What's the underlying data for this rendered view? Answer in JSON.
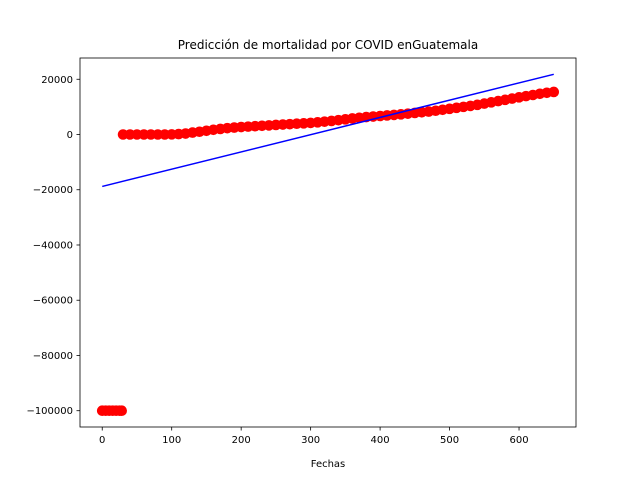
{
  "chart_data": {
    "type": "scatter",
    "title": "Predicción de mortalidad por COVID enGuatemala",
    "xlabel": "Fechas",
    "ylabel": "",
    "xlim": [
      -32,
      682
    ],
    "ylim": [
      -105900,
      27700
    ],
    "xticks": [
      0,
      100,
      200,
      300,
      400,
      500,
      600
    ],
    "yticks": [
      -100000,
      -80000,
      -60000,
      -40000,
      -20000,
      0,
      20000
    ],
    "xtick_labels": [
      "0",
      "100",
      "200",
      "300",
      "400",
      "500",
      "600"
    ],
    "ytick_labels": [
      "−100000",
      "−80000",
      "−60000",
      "−40000",
      "−20000",
      "0",
      "20000"
    ],
    "grid": false,
    "series": [
      {
        "kind": "scatter",
        "color": "#ff0000",
        "points": [
          [
            0,
            -100000
          ],
          [
            5,
            -100000
          ],
          [
            10,
            -100000
          ],
          [
            15,
            -100000
          ],
          [
            20,
            -100000
          ],
          [
            25,
            -100000
          ],
          [
            28,
            -100000
          ],
          [
            30,
            0
          ],
          [
            40,
            0
          ],
          [
            50,
            0
          ],
          [
            60,
            0
          ],
          [
            70,
            0
          ],
          [
            80,
            0
          ],
          [
            90,
            0
          ],
          [
            100,
            50
          ],
          [
            110,
            150
          ],
          [
            120,
            350
          ],
          [
            130,
            700
          ],
          [
            140,
            1000
          ],
          [
            150,
            1350
          ],
          [
            160,
            1700
          ],
          [
            170,
            2000
          ],
          [
            180,
            2300
          ],
          [
            190,
            2500
          ],
          [
            200,
            2700
          ],
          [
            210,
            2850
          ],
          [
            220,
            3000
          ],
          [
            230,
            3150
          ],
          [
            240,
            3300
          ],
          [
            250,
            3450
          ],
          [
            260,
            3600
          ],
          [
            270,
            3750
          ],
          [
            280,
            3900
          ],
          [
            290,
            4050
          ],
          [
            300,
            4200
          ],
          [
            310,
            4400
          ],
          [
            320,
            4650
          ],
          [
            330,
            4900
          ],
          [
            340,
            5200
          ],
          [
            350,
            5500
          ],
          [
            360,
            5800
          ],
          [
            370,
            6050
          ],
          [
            380,
            6300
          ],
          [
            390,
            6500
          ],
          [
            400,
            6700
          ],
          [
            410,
            6900
          ],
          [
            420,
            7100
          ],
          [
            430,
            7300
          ],
          [
            440,
            7550
          ],
          [
            450,
            7800
          ],
          [
            460,
            8050
          ],
          [
            470,
            8300
          ],
          [
            480,
            8600
          ],
          [
            490,
            8950
          ],
          [
            500,
            9300
          ],
          [
            510,
            9650
          ],
          [
            520,
            10000
          ],
          [
            530,
            10350
          ],
          [
            540,
            10750
          ],
          [
            550,
            11200
          ],
          [
            560,
            11650
          ],
          [
            570,
            12100
          ],
          [
            580,
            12550
          ],
          [
            590,
            13000
          ],
          [
            600,
            13450
          ],
          [
            610,
            13900
          ],
          [
            620,
            14300
          ],
          [
            630,
            14750
          ],
          [
            640,
            15100
          ],
          [
            650,
            15400
          ]
        ]
      },
      {
        "kind": "line",
        "color": "#0000ff",
        "points": [
          [
            0,
            -18800
          ],
          [
            650,
            21800
          ]
        ]
      }
    ]
  }
}
